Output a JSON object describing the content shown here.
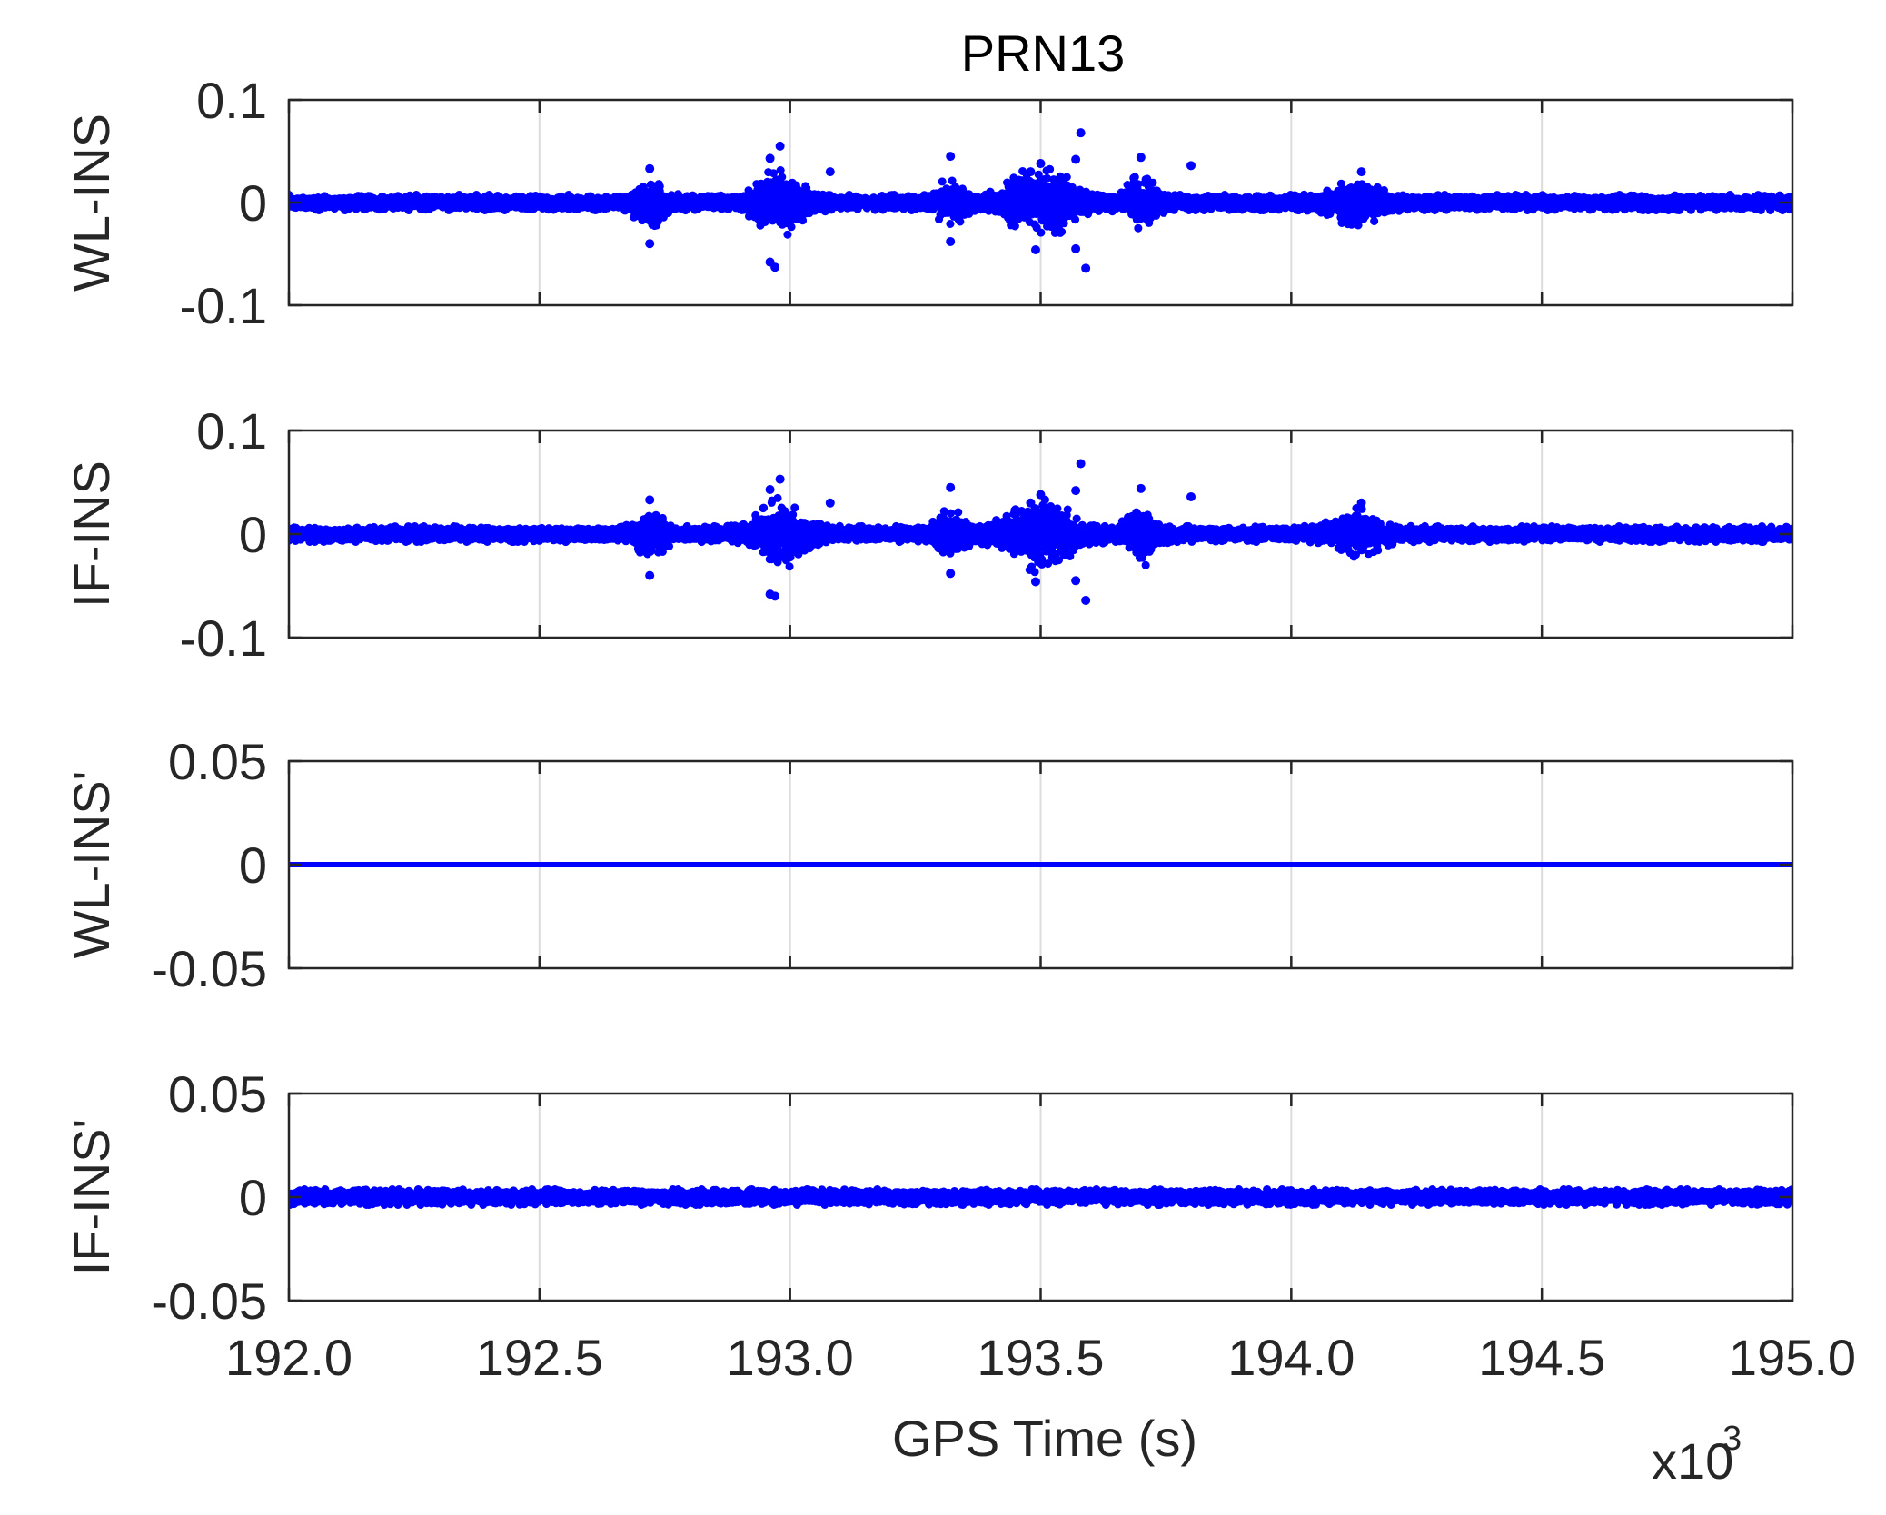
{
  "chart_data": {
    "type": "scatter",
    "title": "PRN13",
    "xlabel": "GPS Time (s)",
    "x_multiplier_label": "x10",
    "x_multiplier_exponent": "3",
    "xlim": [
      192.0,
      195.0
    ],
    "xticks": [
      "192.0",
      "192.5",
      "193.0",
      "193.5",
      "194.0",
      "194.5",
      "195.0"
    ],
    "xtick_values": [
      192.0,
      192.5,
      193.0,
      193.5,
      194.0,
      194.5,
      195.0
    ],
    "grid": "x-only",
    "marker_color": "#0000ff",
    "panels": [
      {
        "ylabel": "WL-INS",
        "ylim": [
          -0.1,
          0.1
        ],
        "yticks": [
          "0.1",
          "0",
          "-0.1"
        ],
        "ytick_values": [
          0.1,
          0,
          -0.1
        ],
        "noise_base": 0.006,
        "bursts": [
          {
            "x": 192.72,
            "width": 0.03,
            "amp": 0.018
          },
          {
            "x": 192.98,
            "width": 0.05,
            "amp": 0.022
          },
          {
            "x": 193.32,
            "width": 0.03,
            "amp": 0.014
          },
          {
            "x": 193.5,
            "width": 0.07,
            "amp": 0.024
          },
          {
            "x": 193.7,
            "width": 0.03,
            "amp": 0.02
          },
          {
            "x": 194.13,
            "width": 0.05,
            "amp": 0.014
          }
        ],
        "outliers": [
          {
            "x": 192.72,
            "y": 0.033
          },
          {
            "x": 192.72,
            "y": -0.04
          },
          {
            "x": 192.96,
            "y": 0.043
          },
          {
            "x": 192.98,
            "y": 0.055
          },
          {
            "x": 192.96,
            "y": -0.058
          },
          {
            "x": 192.97,
            "y": -0.063
          },
          {
            "x": 193.08,
            "y": 0.03
          },
          {
            "x": 193.32,
            "y": 0.045
          },
          {
            "x": 193.32,
            "y": -0.038
          },
          {
            "x": 193.48,
            "y": 0.03
          },
          {
            "x": 193.5,
            "y": 0.038
          },
          {
            "x": 193.49,
            "y": -0.046
          },
          {
            "x": 193.57,
            "y": 0.042
          },
          {
            "x": 193.58,
            "y": 0.068
          },
          {
            "x": 193.59,
            "y": -0.064
          },
          {
            "x": 193.57,
            "y": -0.045
          },
          {
            "x": 193.7,
            "y": 0.044
          },
          {
            "x": 193.8,
            "y": 0.036
          },
          {
            "x": 194.14,
            "y": 0.03
          }
        ]
      },
      {
        "ylabel": "IF-INS",
        "ylim": [
          -0.1,
          0.1
        ],
        "yticks": [
          "0.1",
          "0",
          "-0.1"
        ],
        "ytick_values": [
          0.1,
          0,
          -0.1
        ],
        "noise_base": 0.006,
        "bursts": [
          {
            "x": 192.72,
            "width": 0.03,
            "amp": 0.018
          },
          {
            "x": 192.98,
            "width": 0.05,
            "amp": 0.022
          },
          {
            "x": 193.32,
            "width": 0.03,
            "amp": 0.014
          },
          {
            "x": 193.5,
            "width": 0.07,
            "amp": 0.024
          },
          {
            "x": 193.7,
            "width": 0.03,
            "amp": 0.02
          },
          {
            "x": 194.13,
            "width": 0.05,
            "amp": 0.014
          }
        ],
        "outliers": [
          {
            "x": 192.72,
            "y": 0.033
          },
          {
            "x": 192.72,
            "y": -0.04
          },
          {
            "x": 192.96,
            "y": 0.043
          },
          {
            "x": 192.98,
            "y": 0.053
          },
          {
            "x": 192.96,
            "y": -0.058
          },
          {
            "x": 192.97,
            "y": -0.06
          },
          {
            "x": 193.08,
            "y": 0.03
          },
          {
            "x": 193.32,
            "y": 0.045
          },
          {
            "x": 193.32,
            "y": -0.038
          },
          {
            "x": 193.48,
            "y": 0.03
          },
          {
            "x": 193.5,
            "y": 0.038
          },
          {
            "x": 193.49,
            "y": -0.046
          },
          {
            "x": 193.57,
            "y": 0.042
          },
          {
            "x": 193.58,
            "y": 0.068
          },
          {
            "x": 193.59,
            "y": -0.064
          },
          {
            "x": 193.57,
            "y": -0.045
          },
          {
            "x": 193.7,
            "y": 0.044
          },
          {
            "x": 193.8,
            "y": 0.036
          },
          {
            "x": 194.14,
            "y": 0.03
          }
        ]
      },
      {
        "ylabel": "WL-INS'",
        "ylim": [
          -0.05,
          0.05
        ],
        "yticks": [
          "0.05",
          "0",
          "-0.05"
        ],
        "ytick_values": [
          0.05,
          0,
          -0.05
        ],
        "constant_value": 0
      },
      {
        "ylabel": "IF-INS'",
        "ylim": [
          -0.05,
          0.05
        ],
        "yticks": [
          "0.05",
          "0",
          "-0.05"
        ],
        "ytick_values": [
          0.05,
          0,
          -0.05
        ],
        "noise_base": 0.003,
        "bursts": [],
        "outliers": []
      }
    ]
  }
}
